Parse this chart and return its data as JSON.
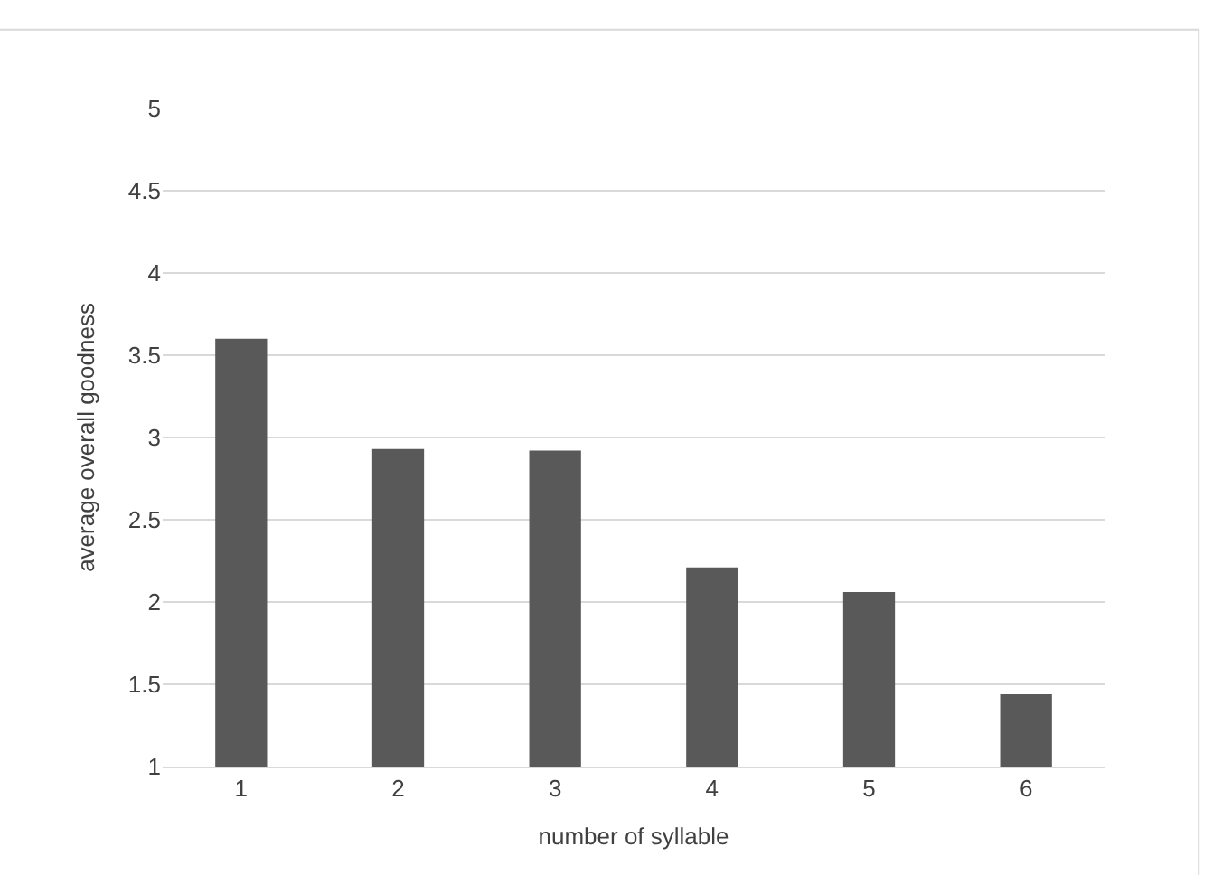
{
  "chart_data": {
    "type": "bar",
    "xlabel": "number of syllable",
    "ylabel": "average overall goodness",
    "categories": [
      "1",
      "2",
      "3",
      "4",
      "5",
      "6"
    ],
    "values": [
      3.6,
      2.93,
      2.92,
      2.21,
      2.06,
      1.44
    ],
    "color": "#595959",
    "ylim": [
      1,
      5
    ],
    "yticks": [
      1,
      1.5,
      2,
      2.5,
      3,
      3.5,
      4,
      4.5,
      5
    ],
    "grid": "y"
  }
}
